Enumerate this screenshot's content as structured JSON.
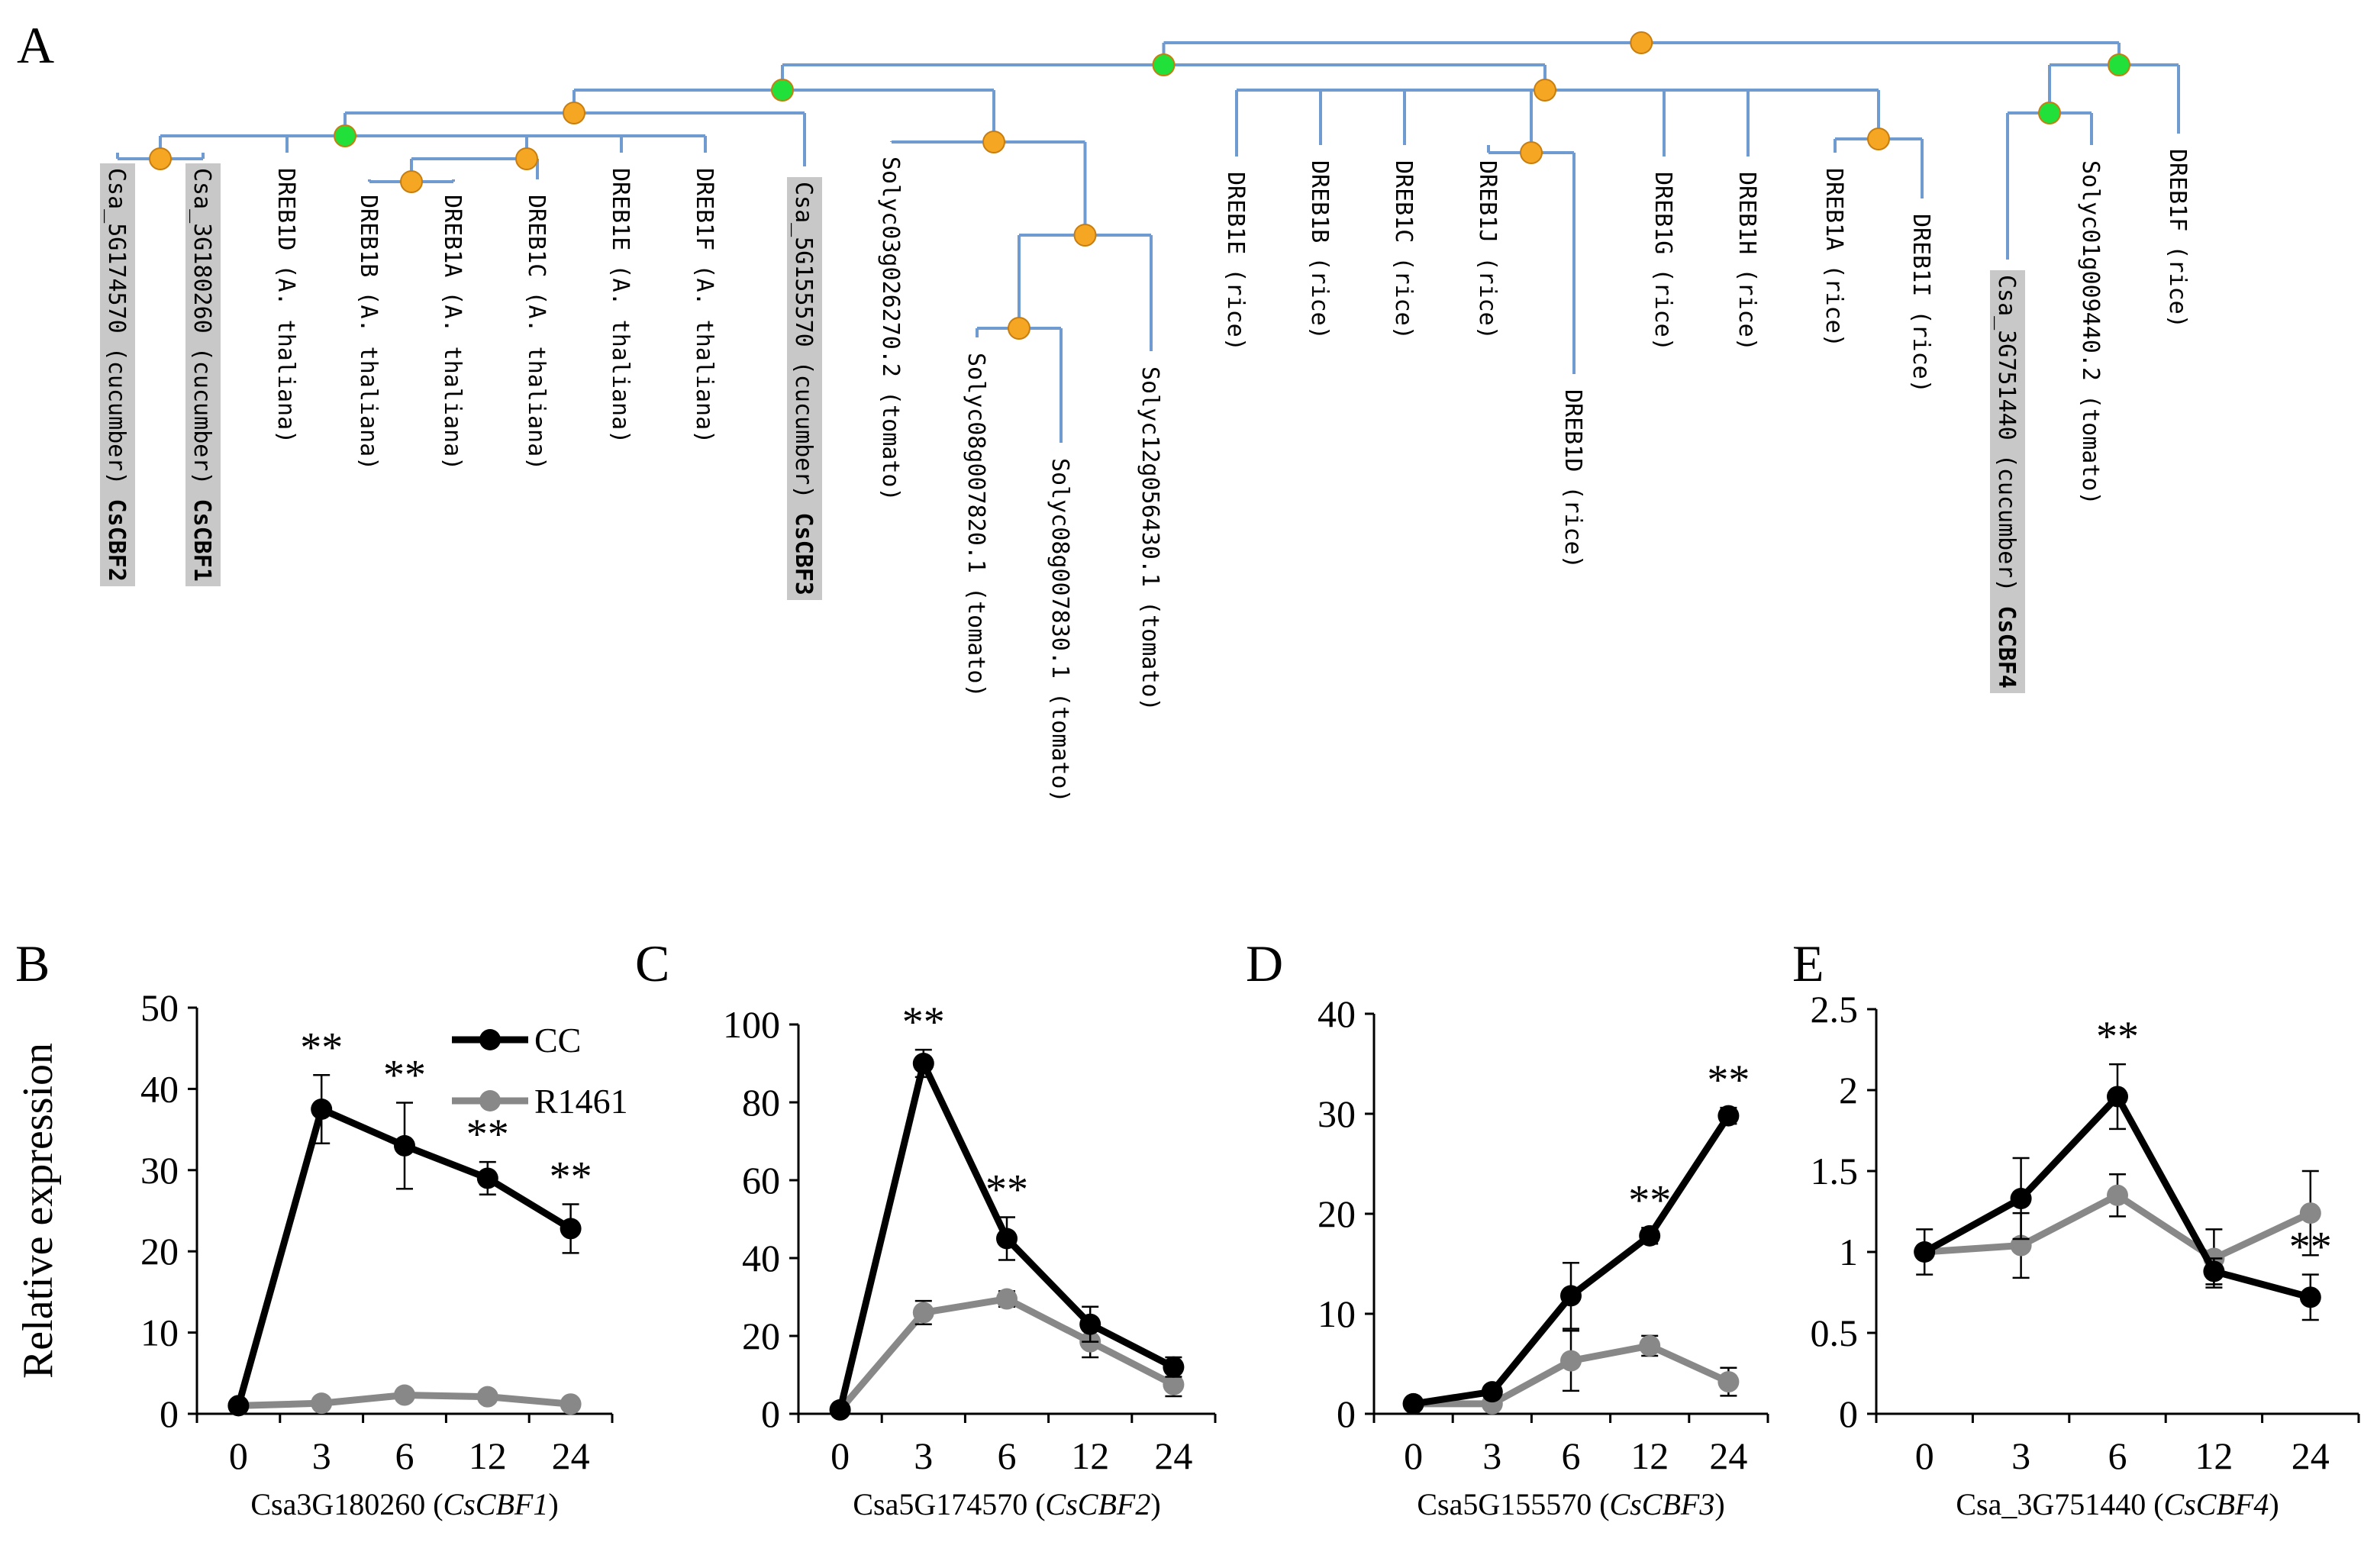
{
  "panel_labels": {
    "A": "A",
    "B": "B",
    "C": "C",
    "D": "D",
    "E": "E"
  },
  "tree": {
    "colors": {
      "branch": "#6f9bd0",
      "node_green": "#22e03a",
      "node_orange": "#f5a623",
      "highlight_bg": "#c8c8c8",
      "highlight_text": "#e0201b",
      "leaf_text": "#000000"
    },
    "leaves": [
      {
        "name": "Csa_5G174570 (cucumber)",
        "tag": "CsCBF2",
        "highlight": true
      },
      {
        "name": "Csa_3G180260 (cucumber)",
        "tag": "CsCBF1",
        "highlight": true
      },
      {
        "name": "DREB1D (A. thaliana)",
        "tag": "",
        "highlight": false
      },
      {
        "name": "DREB1B (A. thaliana)",
        "tag": "",
        "highlight": false
      },
      {
        "name": "DREB1A (A. thaliana)",
        "tag": "",
        "highlight": false
      },
      {
        "name": "DREB1C (A. thaliana)",
        "tag": "",
        "highlight": false
      },
      {
        "name": "DREB1E (A. thaliana)",
        "tag": "",
        "highlight": false
      },
      {
        "name": "DREB1F (A. thaliana)",
        "tag": "",
        "highlight": false
      },
      {
        "name": "Csa_5G155570 (cucumber)",
        "tag": "CsCBF3",
        "highlight": true
      },
      {
        "name": "Solyc03g026270.2 (tomato)",
        "tag": "",
        "highlight": false
      },
      {
        "name": "Solyc08g007820.1 (tomato)",
        "tag": "",
        "highlight": false
      },
      {
        "name": "Solyc08g007830.1 (tomato)",
        "tag": "",
        "highlight": false
      },
      {
        "name": "Solyc12g056430.1 (tomato)",
        "tag": "",
        "highlight": false
      },
      {
        "name": "DREB1E (rice)",
        "tag": "",
        "highlight": false
      },
      {
        "name": "DREB1B (rice)",
        "tag": "",
        "highlight": false
      },
      {
        "name": "DREB1C (rice)",
        "tag": "",
        "highlight": false
      },
      {
        "name": "DREB1J (rice)",
        "tag": "",
        "highlight": false
      },
      {
        "name": "DREB1D (rice)",
        "tag": "",
        "highlight": false
      },
      {
        "name": "DREB1G (rice)",
        "tag": "",
        "highlight": false
      },
      {
        "name": "DREB1H (rice)",
        "tag": "",
        "highlight": false
      },
      {
        "name": "DREB1A (rice)",
        "tag": "",
        "highlight": false
      },
      {
        "name": "DREB1I (rice)",
        "tag": "",
        "highlight": false
      },
      {
        "name": "Csa_3G751440 (cucumber)",
        "tag": "CsCBF4",
        "highlight": true
      },
      {
        "name": "Solyc01g009440.2 (tomato)",
        "tag": "",
        "highlight": false
      },
      {
        "name": "DREB1F (rice)",
        "tag": "",
        "highlight": false
      }
    ]
  },
  "legend": {
    "cc": "CC",
    "r1461": "R1461"
  },
  "colors": {
    "cc": "#000000",
    "r1461": "#888888"
  },
  "chart_data": [
    {
      "panel": "B",
      "type": "line",
      "ylabel": "Relative expression",
      "xlabel_plain": "Csa3G180260 (",
      "xlabel_italic": "CsCBF1",
      "xlabel_close": ")",
      "categories": [
        "0",
        "3",
        "6",
        "12",
        "24"
      ],
      "ylim": [
        0,
        50
      ],
      "yticks": [
        "0",
        "10",
        "20",
        "30",
        "40",
        "50"
      ],
      "series": [
        {
          "name": "CC",
          "values": [
            1,
            37.5,
            33,
            29,
            22.8
          ],
          "errors": [
            0,
            4.2,
            5.3,
            2,
            3
          ]
        },
        {
          "name": "R1461",
          "values": [
            1,
            1.3,
            2.3,
            2.1,
            1.2
          ],
          "errors": [
            0,
            0,
            0,
            0,
            0
          ]
        }
      ],
      "significance": [
        "",
        "**",
        "**",
        "**",
        "**"
      ],
      "legend": true
    },
    {
      "panel": "C",
      "type": "line",
      "ylabel": "",
      "xlabel_plain": "Csa5G174570 (",
      "xlabel_italic": "CsCBF2",
      "xlabel_close": ")",
      "categories": [
        "0",
        "3",
        "6",
        "12",
        "24"
      ],
      "ylim": [
        0,
        100
      ],
      "yticks": [
        "0",
        "20",
        "40",
        "60",
        "80",
        "100"
      ],
      "series": [
        {
          "name": "CC",
          "values": [
            1,
            90,
            45,
            23,
            12
          ],
          "errors": [
            0,
            3.5,
            5.5,
            4.5,
            2.5
          ]
        },
        {
          "name": "R1461",
          "values": [
            1,
            26,
            29.5,
            18.5,
            7.5
          ],
          "errors": [
            0,
            3,
            2,
            4,
            3
          ]
        }
      ],
      "significance": [
        "",
        "**",
        "**",
        "",
        ""
      ],
      "legend": false
    },
    {
      "panel": "D",
      "type": "line",
      "ylabel": "",
      "xlabel_plain": "Csa5G155570 (",
      "xlabel_italic": "CsCBF3",
      "xlabel_close": ")",
      "categories": [
        "0",
        "3",
        "6",
        "12",
        "24"
      ],
      "ylim": [
        0,
        40
      ],
      "yticks": [
        "0",
        "10",
        "20",
        "30",
        "40"
      ],
      "series": [
        {
          "name": "CC",
          "values": [
            1,
            2.2,
            11.8,
            17.8,
            29.8
          ],
          "errors": [
            0,
            0,
            3.3,
            0.8,
            0.8
          ]
        },
        {
          "name": "R1461",
          "values": [
            1,
            1,
            5.3,
            6.8,
            3.2
          ],
          "errors": [
            0,
            0,
            3,
            1,
            1.4
          ]
        }
      ],
      "significance": [
        "",
        "",
        "",
        "**",
        "**"
      ],
      "legend": false
    },
    {
      "panel": "E",
      "type": "line",
      "ylabel": "",
      "xlabel_plain": "Csa_3G751440 (",
      "xlabel_italic": "CsCBF4",
      "xlabel_close": ")",
      "categories": [
        "0",
        "3",
        "6",
        "12",
        "24"
      ],
      "ylim": [
        0,
        2.5
      ],
      "yticks": [
        "0",
        "0.5",
        "1",
        "1.5",
        "2",
        "2.5"
      ],
      "series": [
        {
          "name": "CC",
          "values": [
            1,
            1.33,
            1.96,
            0.88,
            0.72
          ],
          "errors": [
            0.14,
            0.25,
            0.2,
            0.08,
            0.14
          ]
        },
        {
          "name": "R1461",
          "values": [
            1,
            1.04,
            1.35,
            0.96,
            1.24
          ],
          "errors": [
            0,
            0.2,
            0.13,
            0.18,
            0.26
          ]
        }
      ],
      "significance": [
        "",
        "",
        "**",
        "",
        "**"
      ],
      "legend": false
    }
  ]
}
